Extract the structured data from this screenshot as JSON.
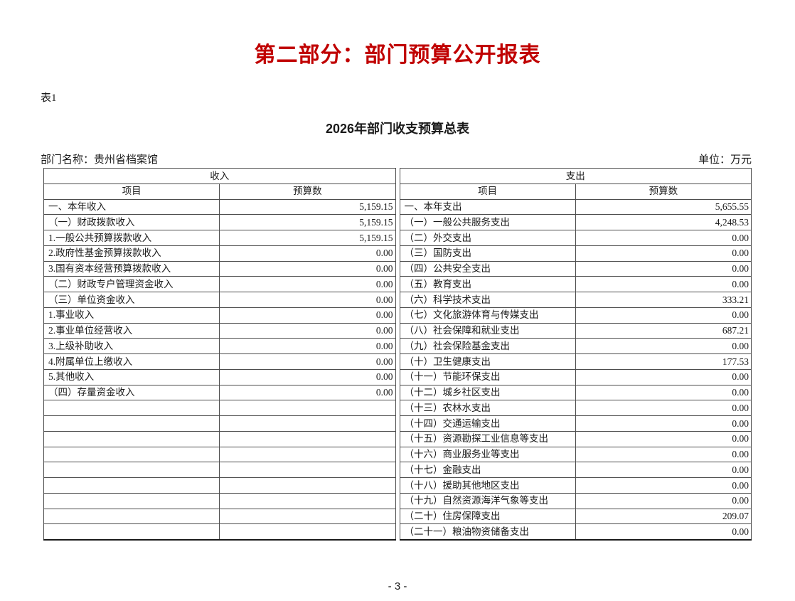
{
  "page": {
    "title": "第二部分：部门预算公开报表",
    "title_color": "#c00000",
    "table_label": "表1",
    "subtitle": "2026年部门收支预算总表",
    "department_label": "部门名称：贵州省档案馆",
    "unit_label": "单位：万元",
    "page_number": "- 3 -"
  },
  "income": {
    "section_header": "收入",
    "columns": {
      "item": "项目",
      "value": "预算数"
    },
    "rows": [
      {
        "item": "一、本年收入",
        "value": "5,159.15"
      },
      {
        "item": "（一）财政拨款收入",
        "value": "5,159.15"
      },
      {
        "item": "1.一般公共预算拨款收入",
        "value": "5,159.15"
      },
      {
        "item": "2.政府性基金预算拨款收入",
        "value": "0.00"
      },
      {
        "item": "3.国有资本经营预算拨款收入",
        "value": "0.00"
      },
      {
        "item": "（二）财政专户管理资金收入",
        "value": "0.00"
      },
      {
        "item": "（三）单位资金收入",
        "value": "0.00"
      },
      {
        "item": "1.事业收入",
        "value": "0.00"
      },
      {
        "item": "2.事业单位经营收入",
        "value": "0.00"
      },
      {
        "item": "3.上级补助收入",
        "value": "0.00"
      },
      {
        "item": "4.附属单位上缴收入",
        "value": "0.00"
      },
      {
        "item": "5.其他收入",
        "value": "0.00"
      },
      {
        "item": "（四）存量资金收入",
        "value": "0.00"
      },
      {
        "item": "",
        "value": ""
      },
      {
        "item": "",
        "value": ""
      },
      {
        "item": "",
        "value": ""
      },
      {
        "item": "",
        "value": ""
      },
      {
        "item": "",
        "value": ""
      },
      {
        "item": "",
        "value": ""
      },
      {
        "item": "",
        "value": ""
      },
      {
        "item": "",
        "value": ""
      },
      {
        "item": "",
        "value": ""
      }
    ]
  },
  "expense": {
    "section_header": "支出",
    "columns": {
      "item": "项目",
      "value": "预算数"
    },
    "rows": [
      {
        "item": "一、本年支出",
        "value": "5,655.55"
      },
      {
        "item": "（一）一般公共服务支出",
        "value": "4,248.53"
      },
      {
        "item": "（二）外交支出",
        "value": "0.00"
      },
      {
        "item": "（三）国防支出",
        "value": "0.00"
      },
      {
        "item": "（四）公共安全支出",
        "value": "0.00"
      },
      {
        "item": "（五）教育支出",
        "value": "0.00"
      },
      {
        "item": "（六）科学技术支出",
        "value": "333.21"
      },
      {
        "item": "（七）文化旅游体育与传媒支出",
        "value": "0.00"
      },
      {
        "item": "（八）社会保障和就业支出",
        "value": "687.21"
      },
      {
        "item": "（九）社会保险基金支出",
        "value": "0.00"
      },
      {
        "item": "（十）卫生健康支出",
        "value": "177.53"
      },
      {
        "item": "（十一）节能环保支出",
        "value": "0.00"
      },
      {
        "item": "（十二）城乡社区支出",
        "value": "0.00"
      },
      {
        "item": "（十三）农林水支出",
        "value": "0.00"
      },
      {
        "item": "（十四）交通运输支出",
        "value": "0.00"
      },
      {
        "item": "（十五）资源勘探工业信息等支出",
        "value": "0.00"
      },
      {
        "item": "（十六）商业服务业等支出",
        "value": "0.00"
      },
      {
        "item": "（十七）金融支出",
        "value": "0.00"
      },
      {
        "item": "（十八）援助其他地区支出",
        "value": "0.00"
      },
      {
        "item": "（十九）自然资源海洋气象等支出",
        "value": "0.00"
      },
      {
        "item": "（二十）住房保障支出",
        "value": "209.07"
      },
      {
        "item": "（二十一）粮油物资储备支出",
        "value": "0.00"
      }
    ]
  }
}
